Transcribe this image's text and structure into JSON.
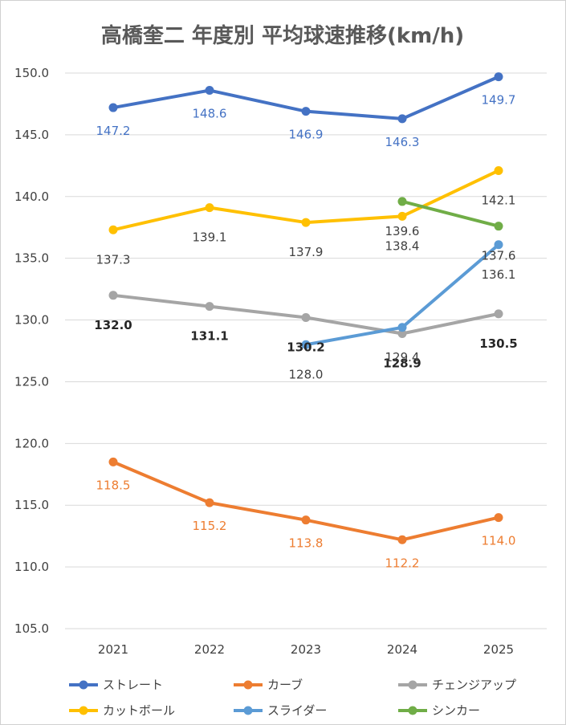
{
  "chart_data": {
    "type": "line",
    "title": "高橋奎二 年度別 平均球速推移(km/h)",
    "xlabel": "",
    "ylabel": "",
    "categories": [
      "2021",
      "2022",
      "2023",
      "2024",
      "2025"
    ],
    "ylim": [
      105,
      150
    ],
    "yticks": [
      "105.0",
      "110.0",
      "115.0",
      "120.0",
      "125.0",
      "130.0",
      "135.0",
      "140.0",
      "145.0",
      "150.0"
    ],
    "grid": true,
    "legend_position": "bottom",
    "series": [
      {
        "name": "ストレート",
        "color": "#4472C4",
        "label_color": "#4472C4",
        "label_weight": "normal",
        "values": [
          147.2,
          148.6,
          146.9,
          146.3,
          149.7
        ],
        "labels": [
          "147.2",
          "148.6",
          "146.9",
          "146.3",
          "149.7"
        ]
      },
      {
        "name": "カーブ",
        "color": "#ED7D31",
        "label_color": "#ED7D31",
        "label_weight": "normal",
        "values": [
          118.5,
          115.2,
          113.8,
          112.2,
          114.0
        ],
        "labels": [
          "118.5",
          "115.2",
          "113.8",
          "112.2",
          "114.0"
        ]
      },
      {
        "name": "チェンジアップ",
        "color": "#A5A5A5",
        "label_color": "#262626",
        "label_weight": "bold",
        "values": [
          132.0,
          131.1,
          130.2,
          128.9,
          130.5
        ],
        "labels": [
          "132.0",
          "131.1",
          "130.2",
          "128.9",
          "130.5"
        ]
      },
      {
        "name": "カットボール",
        "color": "#FFC000",
        "label_color": "#404040",
        "label_weight": "normal",
        "values": [
          137.3,
          139.1,
          137.9,
          138.4,
          142.1
        ],
        "labels": [
          "137.3",
          "139.1",
          "137.9",
          "138.4",
          "142.1"
        ]
      },
      {
        "name": "スライダー",
        "color": "#5B9BD5",
        "label_color": "#404040",
        "label_weight": "normal",
        "values": [
          null,
          null,
          128.0,
          129.4,
          136.1
        ],
        "labels": [
          null,
          null,
          "128.0",
          "129.4",
          "136.1"
        ]
      },
      {
        "name": "シンカー",
        "color": "#70AD47",
        "label_color": "#404040",
        "label_weight": "normal",
        "values": [
          null,
          null,
          null,
          139.6,
          137.6
        ],
        "labels": [
          null,
          null,
          null,
          "139.6",
          "137.6"
        ]
      }
    ]
  }
}
